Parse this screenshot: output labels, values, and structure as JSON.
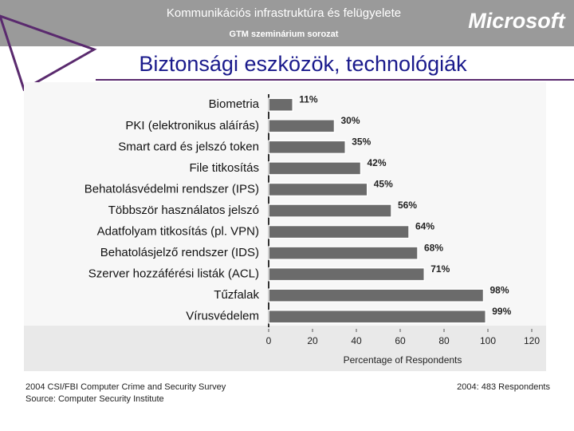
{
  "header": {
    "title": "Kommunikációs infrastruktúra és felügyelete",
    "subtitle": "GTM szeminárium sorozat",
    "brand": "Microsoft"
  },
  "slide_title": "Biztonsági eszközök, technológiák",
  "chart_data": {
    "type": "hbar",
    "categories": [
      "Biometria",
      "PKI (elektronikus aláírás)",
      "Smart card és jelszó token",
      "File titkosítás",
      "Behatolásvédelmi rendszer (IPS)",
      "Többször használatos jelszó",
      "Adatfolyam titkosítás (pl. VPN)",
      "Behatolásjelző rendszer (IDS)",
      "Szerver hozzáférési listák (ACL)",
      "Tűzfalak",
      "Vírusvédelem"
    ],
    "values": [
      11,
      30,
      35,
      42,
      45,
      56,
      64,
      68,
      71,
      98,
      99
    ],
    "value_labels": [
      "11%",
      "30%",
      "35%",
      "42%",
      "45%",
      "56%",
      "64%",
      "68%",
      "71%",
      "98%",
      "99%"
    ],
    "color": "#6b6b6b",
    "xlim": [
      0,
      120
    ],
    "xticks": [
      0,
      20,
      40,
      60,
      80,
      100,
      120
    ],
    "x_label": "Percentage of Respondents",
    "annotations": [
      "2004 CSI/FBI Computer Crime and Security Survey",
      "Source: Computer Security Institute",
      "2004: 483 Respondents"
    ]
  }
}
